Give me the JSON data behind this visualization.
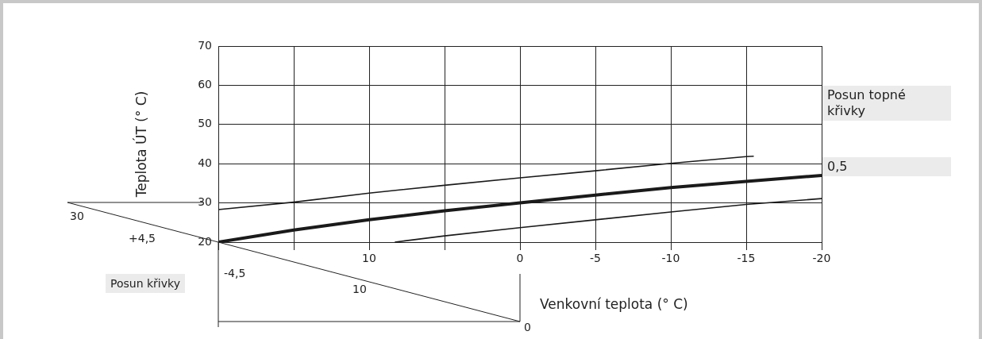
{
  "chart_data": {
    "type": "line",
    "xlabel": "Venkovní teplota (° C)",
    "ylabel": "Teplota ÚT (° C)",
    "xlim": [
      20,
      -20
    ],
    "xticks": [
      {
        "value": 20,
        "label": null
      },
      {
        "value": 15,
        "label": null
      },
      10,
      {
        "value": 5,
        "label": null
      },
      0,
      -5,
      -10,
      -15,
      -20
    ],
    "ylim": [
      20,
      70
    ],
    "yticks": [
      20,
      30,
      40,
      50,
      60,
      70
    ],
    "grid": true,
    "legend": false,
    "marker": "none",
    "line_style": "solid",
    "series": [
      {
        "color": "#1a1a1a",
        "x": [
          20,
          15,
          10,
          5,
          0,
          -5,
          -10,
          -15,
          -15.5
        ],
        "values": [
          28.3,
          30.2,
          32.5,
          34.5,
          36.4,
          38.2,
          40.1,
          41.8,
          41.9
        ]
      },
      {
        "color": "#1a1a1a",
        "x": [
          20,
          15,
          10,
          5,
          0,
          -5,
          -10,
          -15,
          -20
        ],
        "values": [
          20,
          23.1,
          25.7,
          28,
          30,
          32,
          33.9,
          35.5,
          37
        ]
      },
      {
        "color": "#1a1a1a",
        "x": [
          8.3,
          5,
          0,
          -5,
          -10,
          -15,
          -20
        ],
        "values": [
          20,
          21.6,
          23.7,
          25.7,
          27.7,
          29.6,
          31.1
        ]
      }
    ],
    "annotations": [
      "Posun topné křivky",
      "0,5",
      "Posun křivky",
      "30",
      "+4,5",
      "-4,5",
      "10",
      "0"
    ]
  }
}
